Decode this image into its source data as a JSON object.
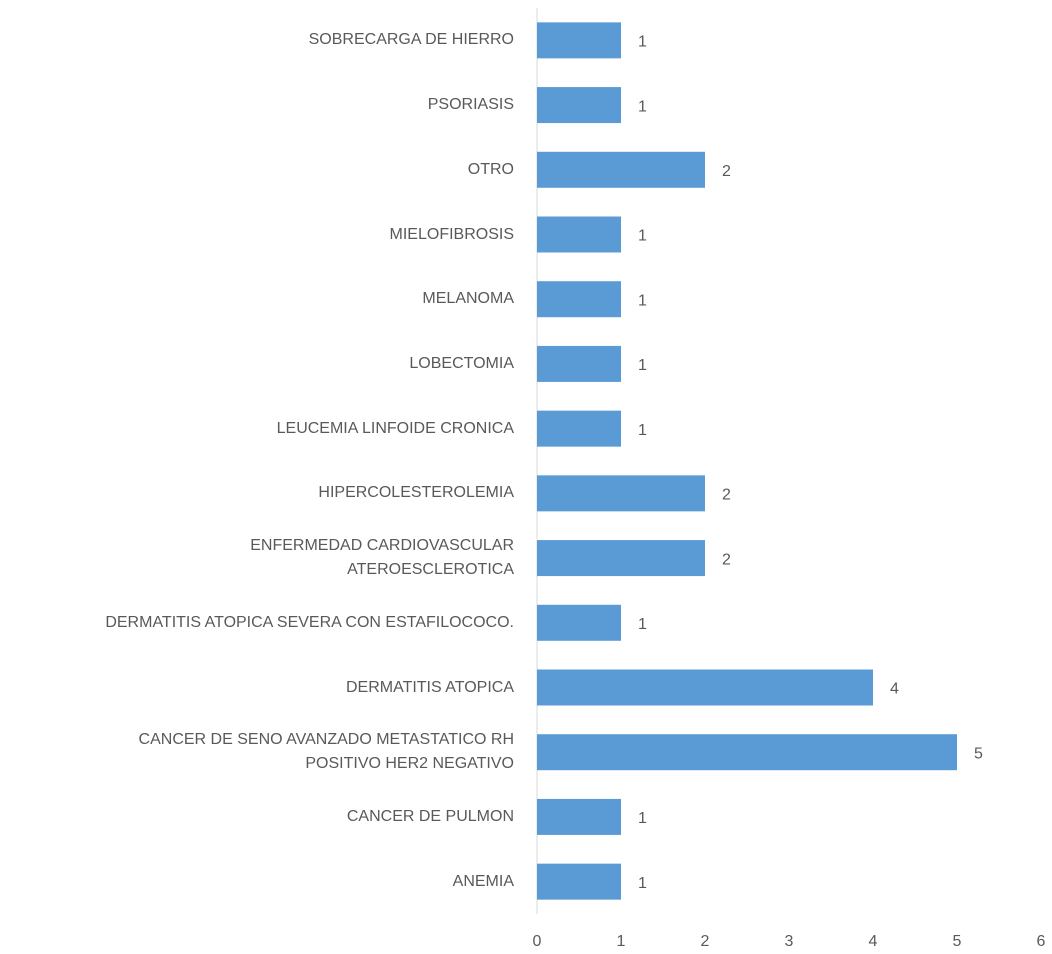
{
  "chart_data": {
    "type": "bar",
    "orientation": "horizontal",
    "categories": [
      "SOBRECARGA  DE HIERRO",
      "PSORIASIS",
      "OTRO",
      "MIELOFIBROSIS",
      "MELANOMA",
      "LOBECTOMIA",
      "LEUCEMIA LINFOIDE CRONICA",
      "HIPERCOLESTEROLEMIA",
      "ENFERMEDAD CARDIOVASCULAR\nATEROESCLEROTICA",
      "DERMATITIS ATOPICA SEVERA CON ESTAFILOCOCO.",
      "DERMATITIS ATOPICA",
      "CANCER DE SENO AVANZADO METASTATICO RH\nPOSITIVO HER2 NEGATIVO",
      "CANCER DE PULMON",
      "ANEMIA"
    ],
    "values": [
      1,
      1,
      2,
      1,
      1,
      1,
      1,
      2,
      2,
      1,
      4,
      5,
      1,
      1
    ],
    "color": "#5b9bd5",
    "xlim": [
      0,
      6
    ],
    "xticks": [
      0,
      1,
      2,
      3,
      4,
      5,
      6
    ],
    "grid": false
  }
}
